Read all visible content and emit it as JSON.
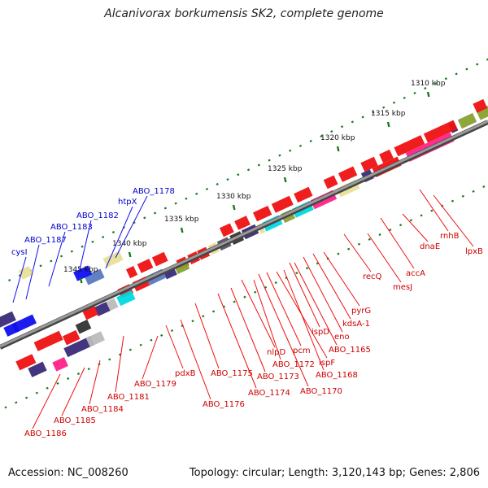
{
  "title": "Alcanivorax borkumensis SK2, complete genome",
  "footer": {
    "accession": "Accession: NC_008260",
    "summary": "Topology: circular; Length: 3,120,143 bp; Genes: 2,806"
  },
  "axis_unit": "kbp",
  "ticks": [
    1310,
    1315,
    1320,
    1325,
    1330,
    1335,
    1340,
    1345
  ],
  "colors": {
    "red": "#ee1111",
    "blue": "#1010ee",
    "backbone": "#808080"
  },
  "forward_genes": [
    {
      "label": "ABO_1178",
      "pos": 1339.6
    },
    {
      "label": "htpX",
      "pos": 1341.1
    },
    {
      "label": "ABO_1182",
      "pos": 1343.2
    },
    {
      "label": "ABO_1183",
      "pos": 1344.4
    },
    {
      "label": "ABO_1187",
      "pos": 1346.2
    },
    {
      "label": "cysI",
      "pos": 1347.6
    }
  ],
  "reverse_genes": [
    {
      "label": "lpxB",
      "pos": 1309.6
    },
    {
      "label": "rnhB",
      "pos": 1311.2
    },
    {
      "label": "dnaE",
      "pos": 1314.5
    },
    {
      "label": "accA",
      "pos": 1317.2
    },
    {
      "label": "mesJ",
      "pos": 1319.2
    },
    {
      "label": "recQ",
      "pos": 1320.9
    },
    {
      "label": "pyrG",
      "pos": 1323.2
    },
    {
      "label": "kdsA-1",
      "pos": 1323.8
    },
    {
      "label": "eno",
      "pos": 1324.5
    },
    {
      "label": "ABO_1165",
      "pos": 1325.0
    },
    {
      "label": "ispD",
      "pos": 1325.8
    },
    {
      "label": "ABO_1168",
      "pos": 1326.4
    },
    {
      "label": "ispF",
      "pos": 1326.9
    },
    {
      "label": "pcm",
      "pos": 1327.6
    },
    {
      "label": "ABO_1170",
      "pos": 1327.3
    },
    {
      "label": "ABO_1172",
      "pos": 1328.4
    },
    {
      "label": "nlpD",
      "pos": 1328.8
    },
    {
      "label": "ABO_1173",
      "pos": 1329.5
    },
    {
      "label": "ABO_1174",
      "pos": 1330.8
    },
    {
      "label": "ABO_1175",
      "pos": 1332.2
    },
    {
      "label": "ABO_1176",
      "pos": 1333.0
    },
    {
      "label": "pdxB",
      "pos": 1334.1
    },
    {
      "label": "ABO_1179",
      "pos": 1336.2
    },
    {
      "label": "ABO_1181",
      "pos": 1339.0
    },
    {
      "label": "ABO_1184",
      "pos": 1343.0
    },
    {
      "label": "ABO_1185",
      "pos": 1344.1
    },
    {
      "label": "ABO_1186",
      "pos": 1345.0
    }
  ]
}
